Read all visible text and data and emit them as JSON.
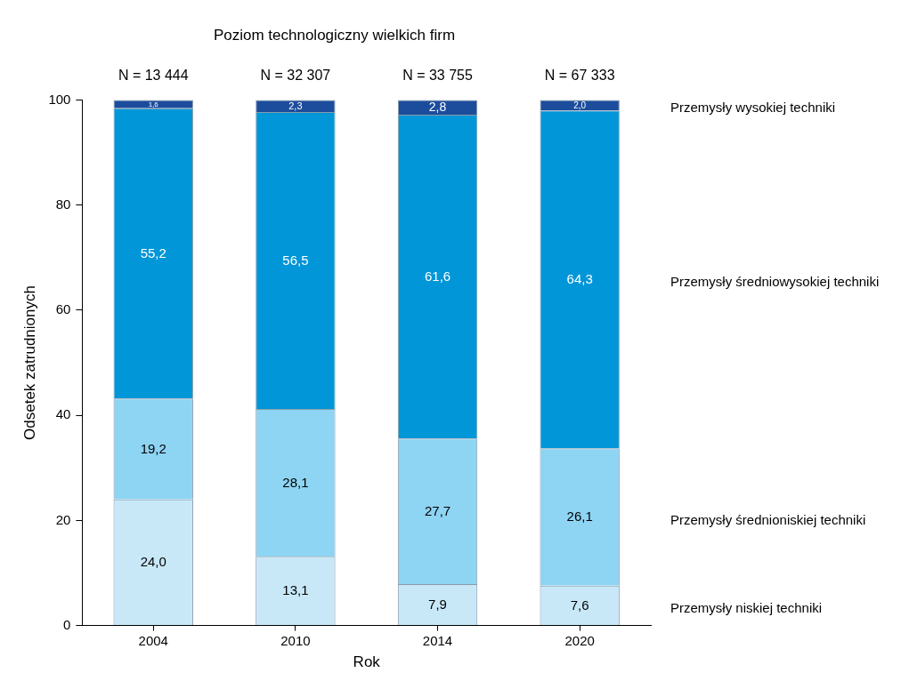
{
  "chart_data": {
    "type": "bar",
    "title": "Poziom technologiczny wielkich firm",
    "xlabel": "Rok",
    "ylabel": "Odsetek zatrudnionych",
    "categories": [
      "2004",
      "2010",
      "2014",
      "2020"
    ],
    "stacked": true,
    "ylim": [
      0,
      100
    ],
    "yticks": [
      0,
      20,
      40,
      60,
      80,
      100
    ],
    "grid": false,
    "legend": false,
    "series": [
      {
        "name": "Przemysły niskiej techniki",
        "color": "#c8e8f8",
        "values": [
          24.0,
          13.1,
          7.9,
          7.6
        ],
        "value_labels": [
          "24,0",
          "13,1",
          "7,9",
          "7,6"
        ]
      },
      {
        "name": "Przemysły średnioniskiej techniki",
        "color": "#8ed4f3",
        "values": [
          19.2,
          28.1,
          27.7,
          26.1
        ],
        "value_labels": [
          "19,2",
          "28,1",
          "27,7",
          "26,1"
        ]
      },
      {
        "name": "Przemysły średniowysokiej techniki",
        "color": "#0096d8",
        "values": [
          55.2,
          56.5,
          61.6,
          64.3
        ],
        "value_labels": [
          "55,2",
          "56,5",
          "61,6",
          "64,3"
        ]
      },
      {
        "name": "Przemysły wysokiej techniki",
        "color": "#1c4c9c",
        "values": [
          1.6,
          2.3,
          2.8,
          2.0
        ],
        "value_labels": [
          "1,6",
          "2,3",
          "2,8",
          "2,0"
        ]
      }
    ],
    "annotations": [
      "N = 13 444",
      "N = 32 307",
      "N = 33 755",
      "N = 67 333"
    ]
  }
}
